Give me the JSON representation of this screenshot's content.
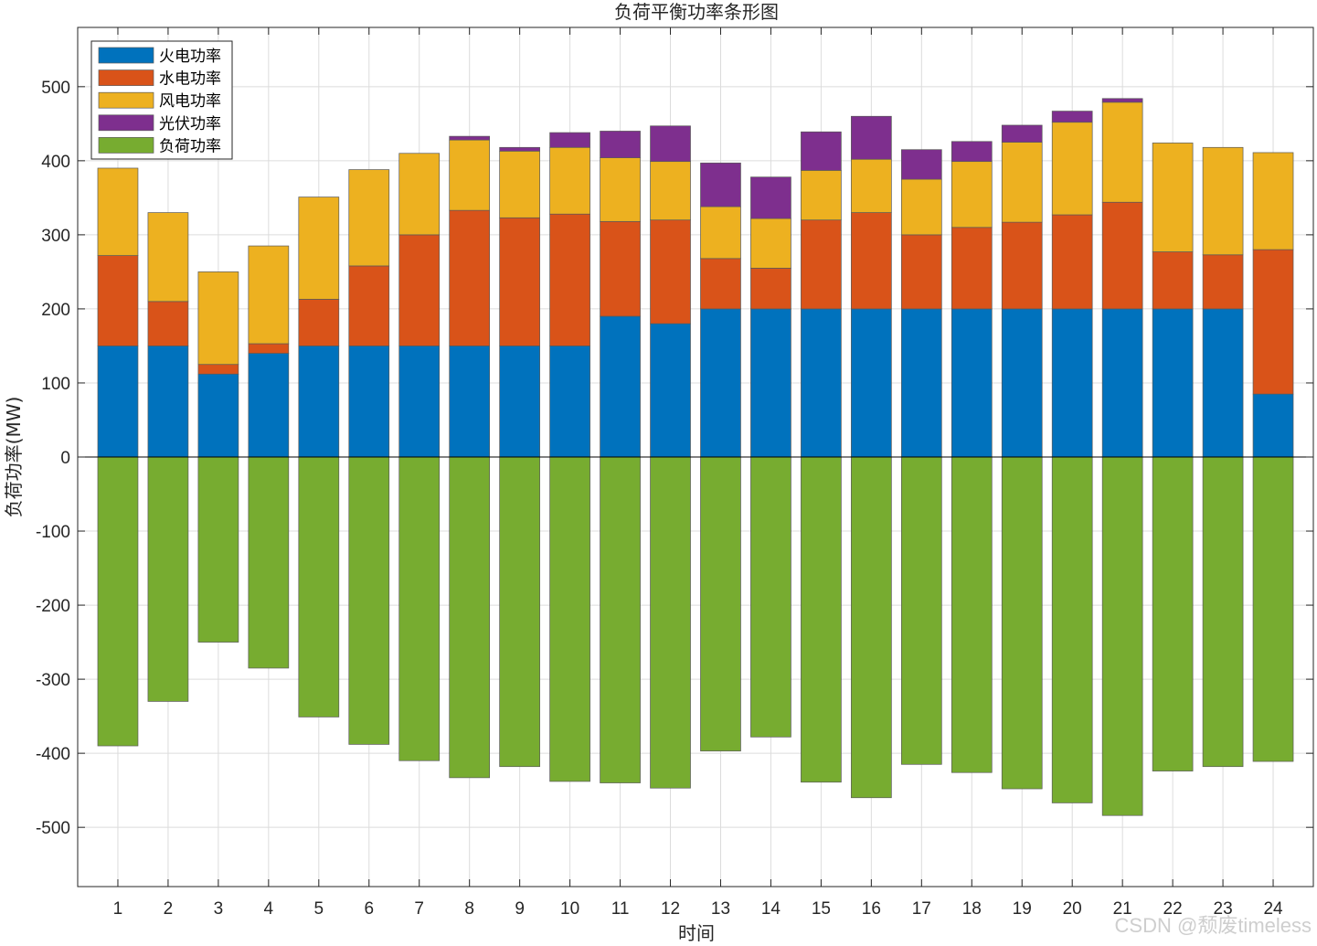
{
  "chart_data": {
    "type": "bar",
    "stacked": true,
    "title": "负荷平衡功率条形图",
    "xlabel": "时间",
    "ylabel": "负荷功率(MW)",
    "ylim": [
      -580,
      580
    ],
    "yticks": [
      -500,
      -400,
      -300,
      -200,
      -100,
      0,
      100,
      200,
      300,
      400,
      500
    ],
    "grid": true,
    "legend_location": "top-left",
    "categories": [
      "1",
      "2",
      "3",
      "4",
      "5",
      "6",
      "7",
      "8",
      "9",
      "10",
      "11",
      "12",
      "13",
      "14",
      "15",
      "16",
      "17",
      "18",
      "19",
      "20",
      "21",
      "22",
      "23",
      "24"
    ],
    "series": [
      {
        "name": "火电功率",
        "color": "#0072BD",
        "values": [
          150,
          150,
          112,
          140,
          150,
          150,
          150,
          150,
          150,
          150,
          190,
          180,
          200,
          200,
          200,
          200,
          200,
          200,
          200,
          200,
          200,
          200,
          200,
          85
        ]
      },
      {
        "name": "水电功率",
        "color": "#D95319",
        "values": [
          122,
          60,
          13,
          13,
          63,
          108,
          150,
          183,
          173,
          178,
          128,
          140,
          68,
          55,
          120,
          130,
          100,
          110,
          117,
          127,
          144,
          77,
          73,
          195
        ]
      },
      {
        "name": "风电功率",
        "color": "#EDB120",
        "values": [
          118,
          120,
          125,
          132,
          138,
          130,
          110,
          95,
          90,
          90,
          86,
          79,
          70,
          67,
          67,
          72,
          75,
          89,
          108,
          125,
          135,
          147,
          145,
          131
        ]
      },
      {
        "name": "光伏功率",
        "color": "#7E2F8E",
        "values": [
          0,
          0,
          0,
          0,
          0,
          0,
          0,
          5,
          5,
          20,
          36,
          48,
          59,
          56,
          52,
          58,
          40,
          27,
          23,
          15,
          5,
          0,
          0,
          0
        ]
      },
      {
        "name": "负荷功率",
        "color": "#77AC30",
        "values": [
          -390,
          -330,
          -250,
          -285,
          -351,
          -388,
          -410,
          -433,
          -418,
          -438,
          -440,
          -447,
          -397,
          -378,
          -439,
          -460,
          -415,
          -426,
          -448,
          -467,
          -484,
          -424,
          -418,
          -411
        ]
      }
    ]
  },
  "watermark": "CSDN @颓废timeless"
}
